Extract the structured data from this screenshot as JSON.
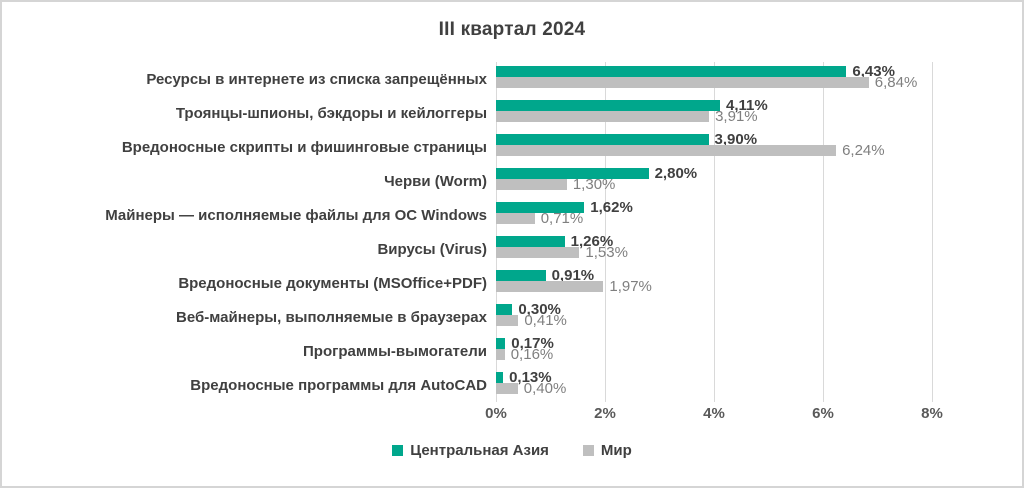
{
  "title": "III квартал 2024",
  "chart_data": {
    "type": "bar",
    "orientation": "horizontal",
    "title": "III квартал 2024",
    "categories": [
      "Ресурсы в интернете из списка запрещённых",
      "Троянцы-шпионы, бэкдоры и кейлоггеры",
      "Вредоносные скрипты и фишинговые страницы",
      "Черви (Worm)",
      "Майнеры — исполняемые файлы для ОС Windows",
      "Вирусы (Virus)",
      "Вредоносные документы (MSOffice+PDF)",
      "Веб-майнеры, выполняемые в браузерах",
      "Программы-вымогатели",
      "Вредоносные программы для AutoCAD"
    ],
    "series": [
      {
        "name": "Центральная Азия",
        "color": "#00A78C",
        "values": [
          6.43,
          4.11,
          3.9,
          2.8,
          1.62,
          1.26,
          0.91,
          0.3,
          0.17,
          0.13
        ],
        "labels": [
          "6,43%",
          "4,11%",
          "3,90%",
          "2,80%",
          "1,62%",
          "1,26%",
          "0,91%",
          "0,30%",
          "0,17%",
          "0,13%"
        ]
      },
      {
        "name": "Мир",
        "color": "#BFBFBF",
        "values": [
          6.84,
          3.91,
          6.24,
          1.3,
          0.71,
          1.53,
          1.97,
          0.41,
          0.16,
          0.4
        ],
        "labels": [
          "6,84%",
          "3,91%",
          "6,24%",
          "1,30%",
          "0,71%",
          "1,53%",
          "1,97%",
          "0,41%",
          "0,16%",
          "0,40%"
        ]
      }
    ],
    "xlim": [
      0,
      8
    ],
    "x_ticks": [
      "0%",
      "2%",
      "4%",
      "6%",
      "8%"
    ],
    "grid": true,
    "legend_position": "bottom"
  }
}
